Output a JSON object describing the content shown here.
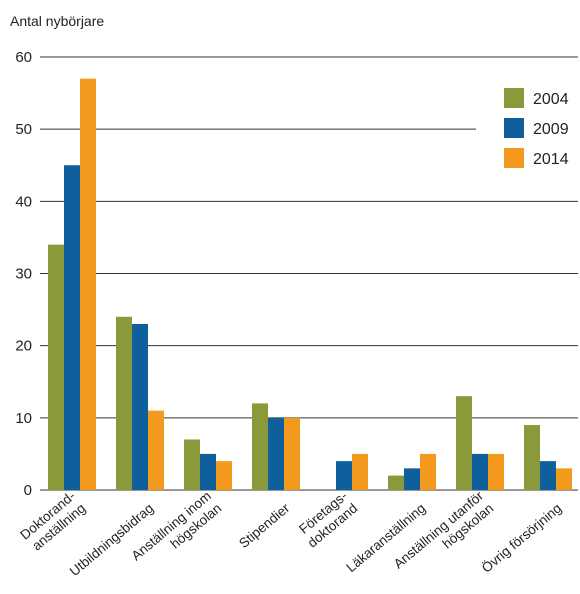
{
  "chart_data": {
    "type": "bar",
    "ylabel": "Antal nybörjare",
    "xlabel": "",
    "ylim": [
      0,
      60
    ],
    "yticks": [
      0,
      10,
      20,
      30,
      40,
      50,
      60
    ],
    "grid": true,
    "legend_position": "top-right",
    "categories": [
      [
        "Doktorand-",
        "anställning"
      ],
      [
        "Utbildningsbidrag"
      ],
      [
        "Anställning inom",
        "högskolan"
      ],
      [
        "Stipendier"
      ],
      [
        "Företags-",
        "doktorand"
      ],
      [
        "Läkaranställning"
      ],
      [
        "Anställning utanför",
        "högskolan"
      ],
      [
        "Övrig försörjning"
      ]
    ],
    "series": [
      {
        "name": "2004",
        "color": "#8a9a3b",
        "values": [
          34,
          24,
          7,
          12,
          0,
          2,
          13,
          9
        ]
      },
      {
        "name": "2009",
        "color": "#0e5f9c",
        "values": [
          45,
          23,
          5,
          10,
          4,
          3,
          5,
          4
        ]
      },
      {
        "name": "2014",
        "color": "#f39a1e",
        "values": [
          57,
          11,
          4,
          10,
          5,
          5,
          5,
          3
        ]
      }
    ]
  }
}
